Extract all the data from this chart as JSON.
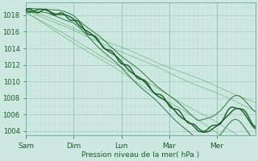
{
  "xlabel": "Pression niveau de la mer( hPa )",
  "ylim": [
    1003.5,
    1019.5
  ],
  "yticks": [
    1004,
    1006,
    1008,
    1010,
    1012,
    1014,
    1016,
    1018
  ],
  "xtick_labels": [
    "Sam",
    "Dim",
    "Lun",
    "Mar",
    "Mer"
  ],
  "xtick_positions": [
    0,
    1,
    2,
    3,
    4
  ],
  "xlim": [
    0,
    4.8
  ],
  "bg_color": "#cce8e0",
  "grid_color_major": "#aacfc8",
  "grid_color_minor": "#bcddd8",
  "line_dark": "#1a5c28",
  "line_med": "#2d7a3a",
  "line_thin": "#4a9a50"
}
